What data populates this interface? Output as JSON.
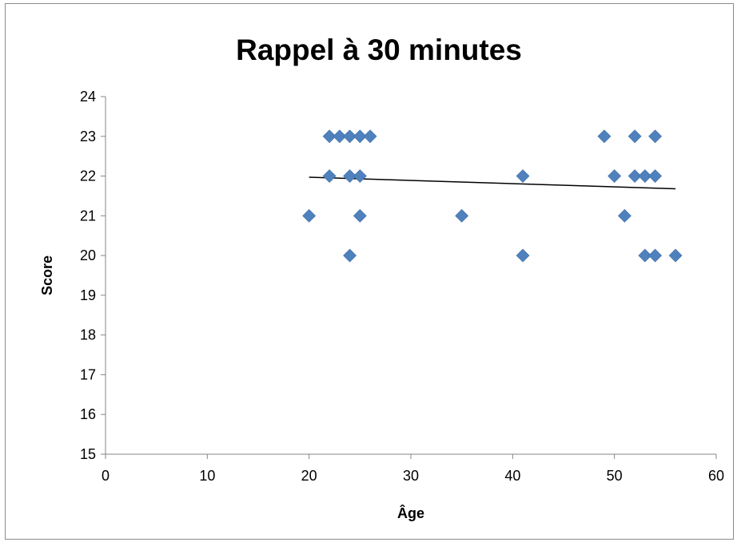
{
  "chart_data": {
    "type": "scatter",
    "title": "Rappel à 30 minutes",
    "xlabel": "Âge",
    "ylabel": "Score",
    "xlim": [
      0,
      60
    ],
    "ylim": [
      15,
      24
    ],
    "x_ticks": [
      0,
      10,
      20,
      30,
      40,
      50,
      60
    ],
    "y_ticks": [
      15,
      16,
      17,
      18,
      19,
      20,
      21,
      22,
      23,
      24
    ],
    "grid": false,
    "legend": "none",
    "marker": "diamond",
    "marker_color": "#4F81BD",
    "trendline": {
      "type": "linear",
      "color": "#000000",
      "start": [
        20,
        21.97
      ],
      "end": [
        56,
        21.68
      ]
    },
    "points": [
      [
        20,
        21
      ],
      [
        22,
        23
      ],
      [
        23,
        23
      ],
      [
        24,
        23
      ],
      [
        25,
        23
      ],
      [
        26,
        23
      ],
      [
        22,
        22
      ],
      [
        24,
        22
      ],
      [
        25,
        22
      ],
      [
        25,
        21
      ],
      [
        24,
        20
      ],
      [
        35,
        21
      ],
      [
        41,
        22
      ],
      [
        41,
        20
      ],
      [
        49,
        23
      ],
      [
        52,
        23
      ],
      [
        54,
        23
      ],
      [
        50,
        22
      ],
      [
        52,
        22
      ],
      [
        53,
        22
      ],
      [
        54,
        22
      ],
      [
        51,
        21
      ],
      [
        53,
        20
      ],
      [
        54,
        20
      ],
      [
        56,
        20
      ]
    ]
  }
}
